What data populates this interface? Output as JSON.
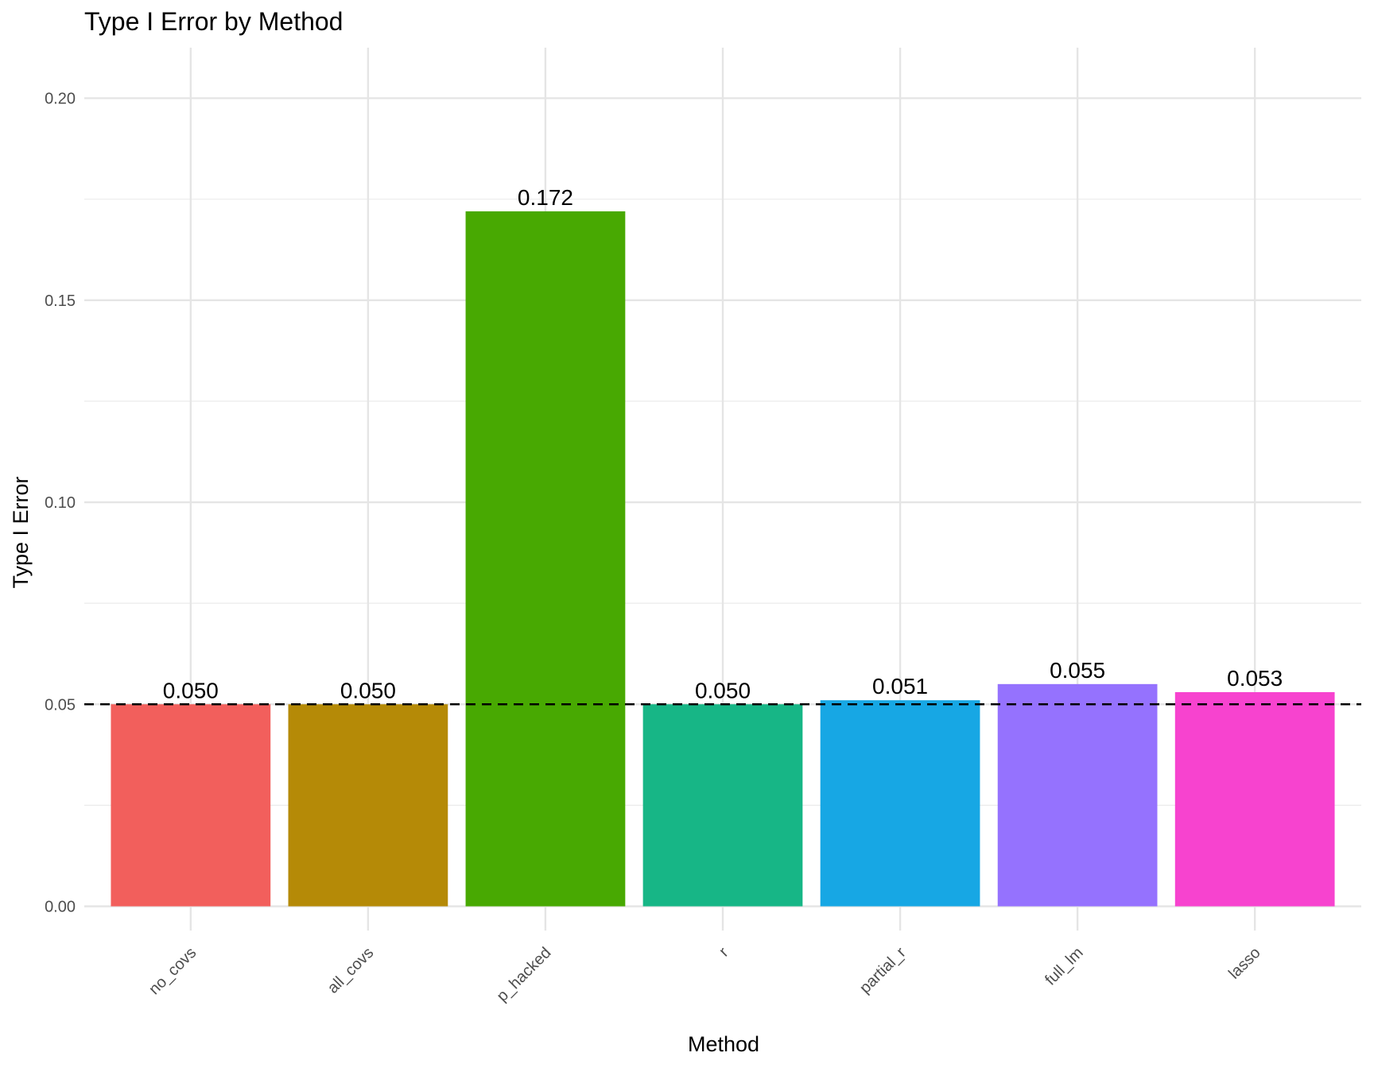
{
  "chart_data": {
    "type": "bar",
    "title": "Type I Error by Method",
    "xlabel": "Method",
    "ylabel": "Type I Error",
    "categories": [
      "no_covs",
      "all_covs",
      "p_hacked",
      "r",
      "partial_r",
      "full_lm",
      "lasso"
    ],
    "values": [
      0.05,
      0.05,
      0.172,
      0.05,
      0.051,
      0.055,
      0.053
    ],
    "data_labels": [
      "0.050",
      "0.050",
      "0.172",
      "0.050",
      "0.051",
      "0.055",
      "0.053"
    ],
    "colors": [
      "#F25F5C",
      "#B58A07",
      "#48A902",
      "#17B686",
      "#17A7E4",
      "#9572FE",
      "#F743CF"
    ],
    "ylim": [
      -0.006,
      0.2125
    ],
    "yticks": [
      0.0,
      0.05,
      0.1,
      0.15,
      0.2
    ],
    "ytick_labels": [
      "0.00",
      "0.05",
      "0.10",
      "0.15",
      "0.20"
    ],
    "reference_line": {
      "value": 0.05,
      "style": "dashed",
      "color": "#000000"
    },
    "grid": true,
    "legend": "none"
  }
}
